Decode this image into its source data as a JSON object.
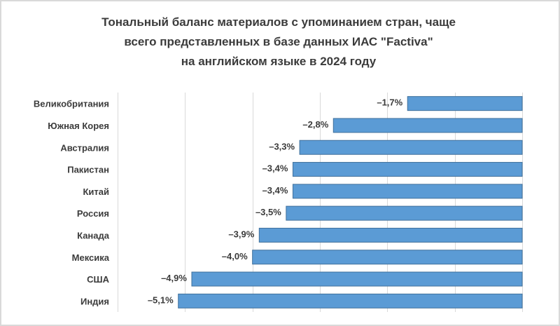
{
  "chart_data": {
    "type": "bar",
    "orientation": "horizontal",
    "title_lines": [
      "Тональный баланс материалов с упоминанием стран, чаще",
      "всего представленных в базе данных ИАС \"Factiva\"",
      "на английском языке в 2024 году"
    ],
    "categories": [
      "Великобритания",
      "Южная Корея",
      "Австралия",
      "Пакистан",
      "Китай",
      "Россия",
      "Канада",
      "Мексика",
      "США",
      "Индия"
    ],
    "values": [
      -1.7,
      -2.8,
      -3.3,
      -3.4,
      -3.4,
      -3.5,
      -3.9,
      -4.0,
      -4.9,
      -5.1
    ],
    "value_labels": [
      "–1,7%",
      "–2,8%",
      "–3,3%",
      "–3,4%",
      "–3,4%",
      "–3,5%",
      "–3,9%",
      "–4,0%",
      "–4,9%",
      "–5,1%"
    ],
    "xlim": [
      -6,
      0
    ],
    "grid": true,
    "bar_color": "#5b9bd5",
    "bar_edge_color": "#41719c",
    "grid_color": "#d9d9d9"
  }
}
